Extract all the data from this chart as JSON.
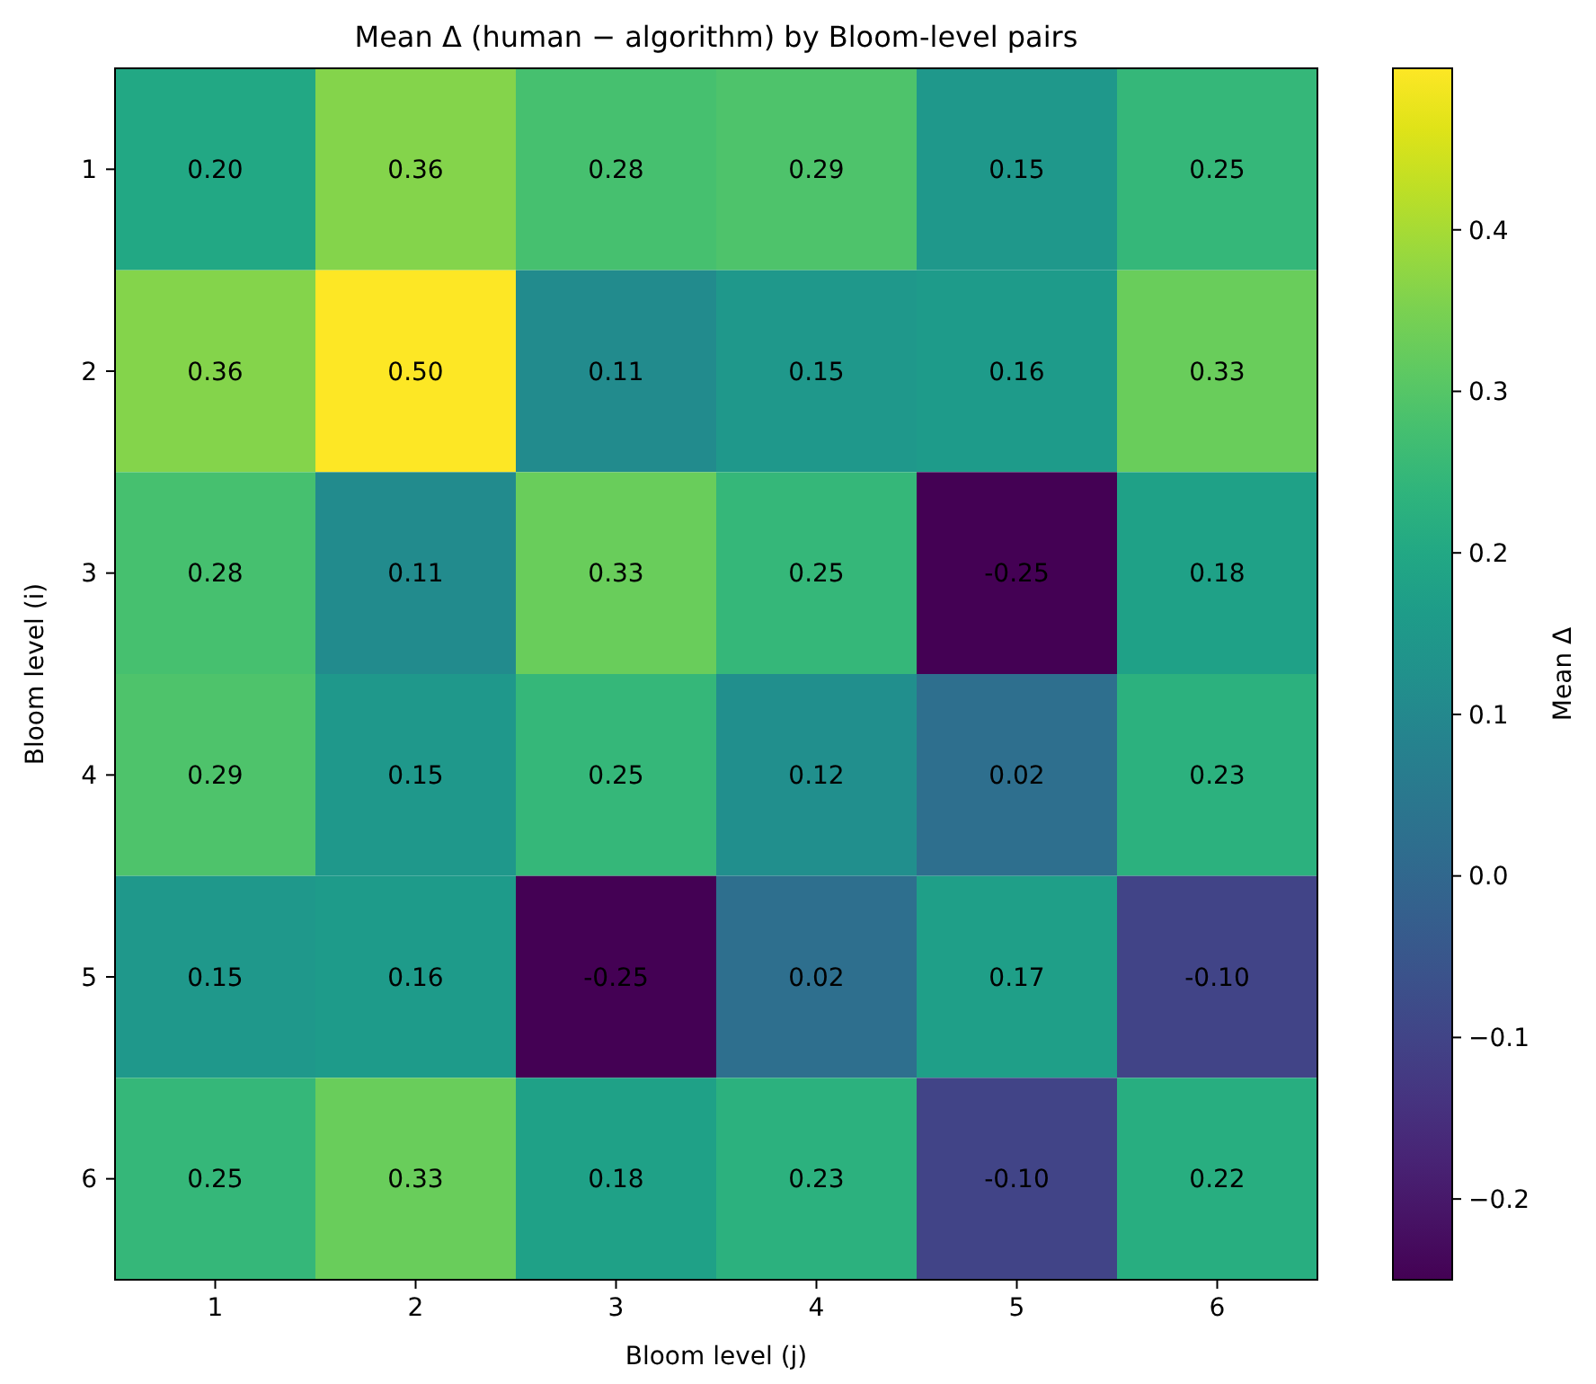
{
  "chart_data": {
    "type": "heatmap",
    "title": "Mean Δ (human − algorithm) by Bloom-level pairs",
    "xlabel": "Bloom level (j)",
    "ylabel": "Bloom level (i)",
    "clabel": "Mean Δ",
    "categories": [
      "1",
      "2",
      "3",
      "4",
      "5",
      "6"
    ],
    "y_categories": [
      "1",
      "2",
      "3",
      "4",
      "5",
      "6"
    ],
    "cells": [
      [
        0.2,
        0.36,
        0.28,
        0.29,
        0.15,
        0.25
      ],
      [
        0.36,
        0.5,
        0.11,
        0.15,
        0.16,
        0.33
      ],
      [
        0.28,
        0.11,
        0.33,
        0.25,
        -0.25,
        0.18
      ],
      [
        0.29,
        0.15,
        0.25,
        0.12,
        0.02,
        0.23
      ],
      [
        0.15,
        0.16,
        -0.25,
        0.02,
        0.17,
        -0.1
      ],
      [
        0.25,
        0.33,
        0.18,
        0.23,
        -0.1,
        0.22
      ]
    ],
    "cell_labels": [
      [
        "0.20",
        "0.36",
        "0.28",
        "0.29",
        "0.15",
        "0.25"
      ],
      [
        "0.36",
        "0.50",
        "0.11",
        "0.15",
        "0.16",
        "0.33"
      ],
      [
        "0.28",
        "0.11",
        "0.33",
        "0.25",
        "-0.25",
        "0.18"
      ],
      [
        "0.29",
        "0.15",
        "0.25",
        "0.12",
        "0.02",
        "0.23"
      ],
      [
        "0.15",
        "0.16",
        "-0.25",
        "0.02",
        "0.17",
        "-0.10"
      ],
      [
        "0.25",
        "0.33",
        "0.18",
        "0.23",
        "-0.10",
        "0.22"
      ]
    ],
    "clim": [
      -0.25,
      0.5
    ],
    "cticks": [
      {
        "value": -0.2,
        "label": "−0.2"
      },
      {
        "value": -0.1,
        "label": "−0.1"
      },
      {
        "value": 0,
        "label": "0.0"
      },
      0.1,
      0.2,
      0.3,
      0.4
    ]
  }
}
